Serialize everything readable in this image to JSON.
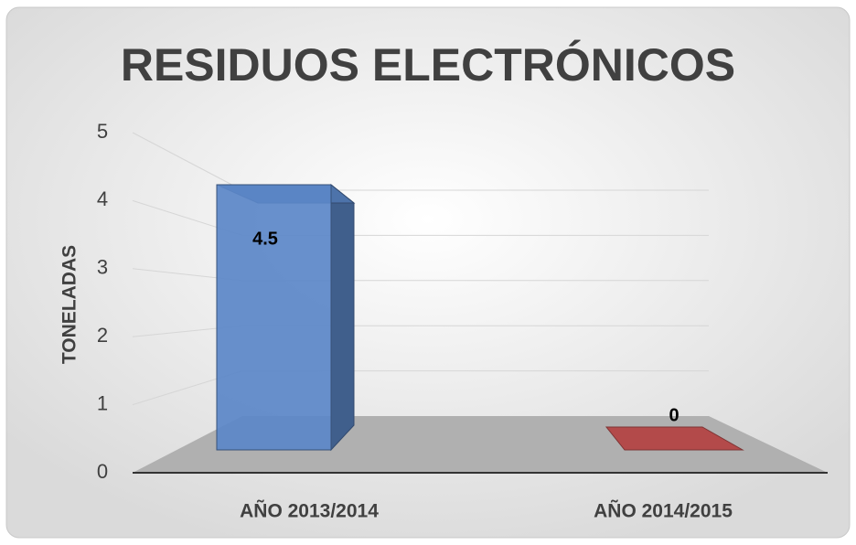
{
  "chart_data": {
    "type": "bar3d",
    "title": "RESIDUOS ELECTRÓNICOS",
    "y_label": "TONELADAS",
    "categories": [
      "AÑO 2013/2014",
      "AÑO 2014/2015"
    ],
    "values": [
      4.5,
      0
    ],
    "value_labels": [
      "4.5",
      "0"
    ],
    "colors": [
      "#5b87c8",
      "#b34a4a"
    ],
    "ylim": [
      0,
      5
    ],
    "yticks": [
      0,
      1,
      2,
      3,
      4,
      5
    ],
    "grid": true
  }
}
